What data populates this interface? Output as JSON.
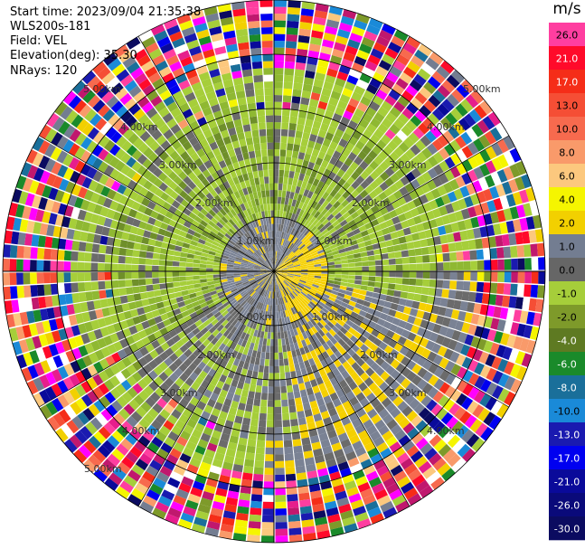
{
  "info": {
    "start_time": "Start time: 2023/09/04 21:35:38",
    "site": "WLS200s-181",
    "field": "Field: VEL",
    "elevation": "Elevation(deg): 35.30",
    "nrays": "NRays: 120"
  },
  "colorbar": {
    "unit": "m/s",
    "segments": [
      {
        "color": "#ff3ea0"
      },
      {
        "color": "#ff0a2a"
      },
      {
        "color": "#f52d18"
      },
      {
        "color": "#f54e35"
      },
      {
        "color": "#f76a4e"
      },
      {
        "color": "#f99a6a"
      },
      {
        "color": "#fcc87e"
      },
      {
        "color": "#f5f500"
      },
      {
        "color": "#f2d000"
      },
      {
        "color": "#737d91"
      },
      {
        "color": "#666666"
      },
      {
        "color": "#a6ce3a"
      },
      {
        "color": "#7e9a2a"
      },
      {
        "color": "#5e7a22"
      },
      {
        "color": "#1a8a2a"
      },
      {
        "color": "#1a6f9a"
      },
      {
        "color": "#1a8ad8"
      },
      {
        "color": "#1a1ab0"
      },
      {
        "color": "#0000f0"
      },
      {
        "color": "#0a0a9a"
      },
      {
        "color": "#0a0a7a"
      },
      {
        "color": "#0b0b60"
      }
    ],
    "labels": [
      "26.0",
      "21.0",
      "17.0",
      "13.0",
      "10.0",
      "8.0",
      "6.0",
      "4.0",
      "2.0",
      "1.0",
      "0.0",
      "-1.0",
      "-2.0",
      "-4.0",
      "-6.0",
      "-8.0",
      "-10.0",
      "-13.0",
      "-17.0",
      "-21.0",
      "-26.0",
      "-30.0"
    ]
  },
  "ring_labels": [
    "1.00km",
    "2.00km",
    "3.00km",
    "4.00km",
    "5.00km"
  ],
  "palettes": {
    "yellow": "#f5d000",
    "gray_a": "#6b6b6b",
    "gray_b": "#7a8294",
    "green_a": "#a6ce3a",
    "green_b": "#8fb832",
    "green_c": "#6f8f2a",
    "noise": [
      "#ff3ea0",
      "#ff0a2a",
      "#f52d18",
      "#f54e35",
      "#f76a4e",
      "#f99a6a",
      "#fcc87e",
      "#f5f500",
      "#f2d000",
      "#737d91",
      "#a6ce3a",
      "#7e9a2a",
      "#1a8a2a",
      "#1a6f9a",
      "#1a8ad8",
      "#1a1ab0",
      "#0000f0",
      "#0a0a9a",
      "#0b0b60",
      "#ff00ff",
      "#e61e8c",
      "#c0186e",
      "#ffffff"
    ]
  }
}
